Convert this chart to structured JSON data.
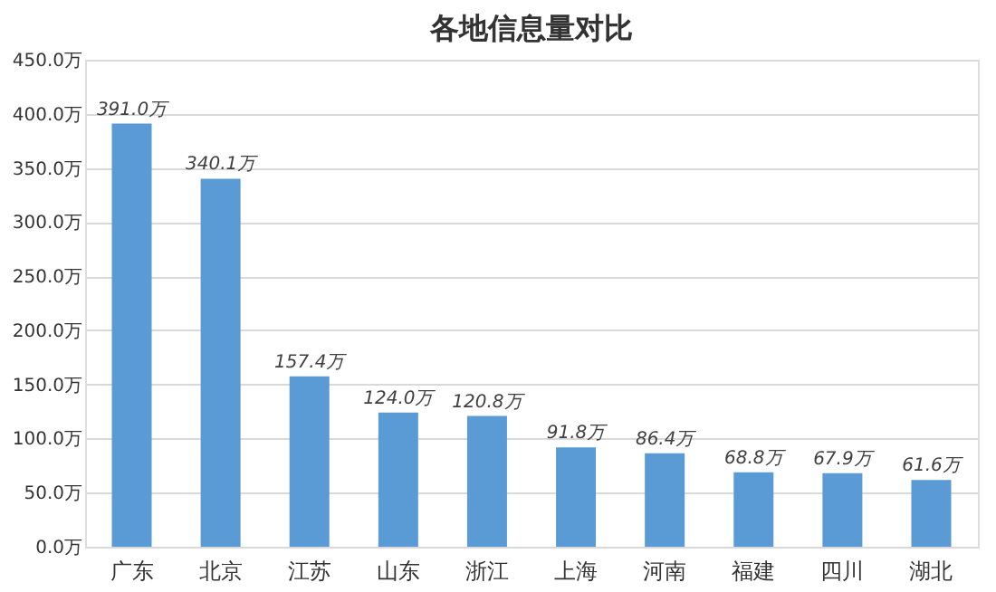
{
  "chart_data": {
    "type": "bar",
    "title": "各地信息量对比",
    "categories": [
      "广东",
      "北京",
      "江苏",
      "山东",
      "浙江",
      "上海",
      "河南",
      "福建",
      "四川",
      "湖北"
    ],
    "values": [
      391.0,
      340.1,
      157.4,
      124.0,
      120.8,
      91.8,
      86.4,
      68.8,
      67.9,
      61.6
    ],
    "value_labels": [
      "391.0万",
      "340.1万",
      "157.4万",
      "124.0万",
      "120.8万",
      "91.8万",
      "86.4万",
      "68.8万",
      "67.9万",
      "61.6万"
    ],
    "color": "#5b9bd5",
    "ylim": [
      0,
      450
    ],
    "yticks": [
      {
        "value": 0,
        "label": "0.0万"
      },
      {
        "value": 50,
        "label": "50.0万"
      },
      {
        "value": 100,
        "label": "100.0万"
      },
      {
        "value": 150,
        "label": "150.0万"
      },
      {
        "value": 200,
        "label": "200.0万"
      },
      {
        "value": 250,
        "label": "250.0万"
      },
      {
        "value": 300,
        "label": "300.0万"
      },
      {
        "value": 350,
        "label": "350.0万"
      },
      {
        "value": 400,
        "label": "400.0万"
      },
      {
        "value": 450,
        "label": "450.0万"
      }
    ],
    "grid": "y"
  }
}
